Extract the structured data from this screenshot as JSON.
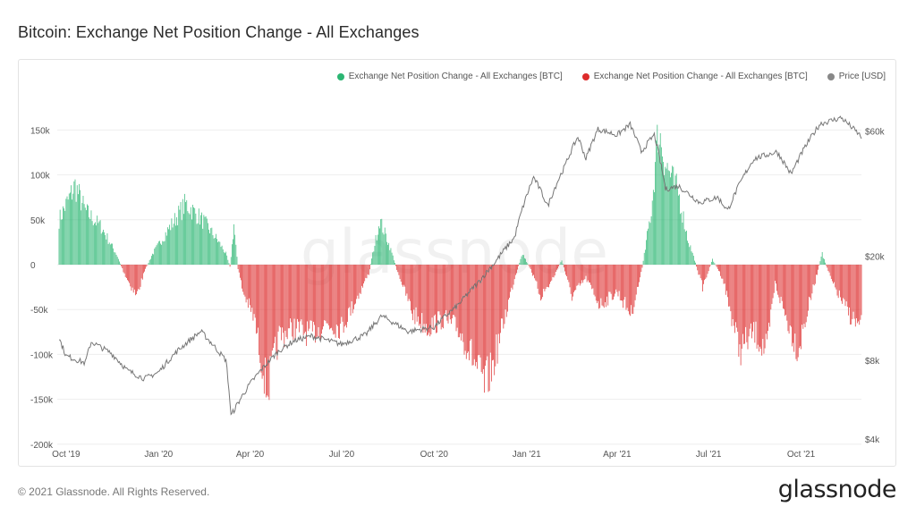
{
  "page": {
    "title": "Bitcoin: Exchange Net Position Change - All Exchanges",
    "copyright": "© 2021 Glassnode. All Rights Reserved.",
    "brand": "glassnode",
    "watermark": "glassnode"
  },
  "colors": {
    "positive": "#2cb673",
    "negative": "#dd2b2b",
    "price": "#777777",
    "grid": "#eeeeee"
  },
  "chart_data": {
    "type": "bar",
    "title": "Bitcoin: Exchange Net Position Change - All Exchanges",
    "legend": [
      {
        "label": "Exchange Net Position Change - All Exchanges [BTC]",
        "color": "#2cb673",
        "icon": "green-dot-icon"
      },
      {
        "label": "Exchange Net Position Change - All Exchanges [BTC]",
        "color": "#dd2b2b",
        "icon": "red-dot-icon"
      },
      {
        "label": "Price [USD]",
        "color": "#888888",
        "icon": "gray-dot-icon"
      }
    ],
    "legend_position": "top-right",
    "x_range": [
      "2019-09-24",
      "2021-11-30"
    ],
    "x_ticks": [
      {
        "date": "2019-10-01",
        "label": "Oct '19"
      },
      {
        "date": "2020-01-01",
        "label": "Jan '20"
      },
      {
        "date": "2020-04-01",
        "label": "Apr '20"
      },
      {
        "date": "2020-07-01",
        "label": "Jul '20"
      },
      {
        "date": "2020-10-01",
        "label": "Oct '20"
      },
      {
        "date": "2021-01-01",
        "label": "Jan '21"
      },
      {
        "date": "2021-04-01",
        "label": "Apr '21"
      },
      {
        "date": "2021-07-01",
        "label": "Jul '21"
      },
      {
        "date": "2021-10-01",
        "label": "Oct '21"
      }
    ],
    "y_left": {
      "range": [
        -200000,
        200000
      ],
      "ticks": [
        150000,
        100000,
        50000,
        0,
        -50000,
        -100000,
        -150000,
        -200000
      ],
      "tick_labels": [
        "150k",
        "100k",
        "50k",
        "0",
        "-50k",
        "-100k",
        "-150k",
        "-200k"
      ]
    },
    "y_right": {
      "scale": "log",
      "range": [
        4000,
        70000
      ],
      "ticks": [
        60000,
        20000,
        8000,
        4000
      ],
      "tick_labels": [
        "$60k",
        "$20k",
        "$8k",
        "$4k"
      ]
    },
    "net_position_anchors": [
      {
        "date": "2019-09-24",
        "value": 50000
      },
      {
        "date": "2019-10-10",
        "value": 88000
      },
      {
        "date": "2019-10-20",
        "value": 60000
      },
      {
        "date": "2019-11-05",
        "value": 42000
      },
      {
        "date": "2019-11-20",
        "value": 12000
      },
      {
        "date": "2019-11-28",
        "value": -10000
      },
      {
        "date": "2019-12-10",
        "value": -35000
      },
      {
        "date": "2019-12-18",
        "value": -8000
      },
      {
        "date": "2019-12-25",
        "value": 10000
      },
      {
        "date": "2020-01-10",
        "value": 38000
      },
      {
        "date": "2020-01-28",
        "value": 68000
      },
      {
        "date": "2020-02-15",
        "value": 48000
      },
      {
        "date": "2020-03-01",
        "value": 25000
      },
      {
        "date": "2020-03-08",
        "value": 12000
      },
      {
        "date": "2020-03-12",
        "value": -2000
      },
      {
        "date": "2020-03-16",
        "value": 45000
      },
      {
        "date": "2020-03-20",
        "value": -5000
      },
      {
        "date": "2020-03-25",
        "value": -30000
      },
      {
        "date": "2020-04-05",
        "value": -60000
      },
      {
        "date": "2020-04-18",
        "value": -140000
      },
      {
        "date": "2020-04-30",
        "value": -80000
      },
      {
        "date": "2020-05-15",
        "value": -70000
      },
      {
        "date": "2020-06-01",
        "value": -78000
      },
      {
        "date": "2020-06-15",
        "value": -65000
      },
      {
        "date": "2020-07-01",
        "value": -70000
      },
      {
        "date": "2020-07-15",
        "value": -40000
      },
      {
        "date": "2020-07-28",
        "value": -10000
      },
      {
        "date": "2020-08-08",
        "value": 50000
      },
      {
        "date": "2020-08-18",
        "value": 20000
      },
      {
        "date": "2020-08-25",
        "value": -5000
      },
      {
        "date": "2020-09-10",
        "value": -55000
      },
      {
        "date": "2020-09-25",
        "value": -70000
      },
      {
        "date": "2020-10-10",
        "value": -60000
      },
      {
        "date": "2020-10-25",
        "value": -72000
      },
      {
        "date": "2020-11-05",
        "value": -95000
      },
      {
        "date": "2020-11-20",
        "value": -135000
      },
      {
        "date": "2020-11-28",
        "value": -115000
      },
      {
        "date": "2020-12-10",
        "value": -60000
      },
      {
        "date": "2020-12-20",
        "value": -15000
      },
      {
        "date": "2020-12-28",
        "value": 12000
      },
      {
        "date": "2021-01-05",
        "value": -5000
      },
      {
        "date": "2021-01-15",
        "value": -35000
      },
      {
        "date": "2021-01-25",
        "value": -20000
      },
      {
        "date": "2021-02-05",
        "value": 5000
      },
      {
        "date": "2021-02-15",
        "value": -35000
      },
      {
        "date": "2021-03-01",
        "value": -15000
      },
      {
        "date": "2021-03-15",
        "value": -45000
      },
      {
        "date": "2021-04-01",
        "value": -30000
      },
      {
        "date": "2021-04-15",
        "value": -55000
      },
      {
        "date": "2021-04-25",
        "value": -10000
      },
      {
        "date": "2021-05-05",
        "value": 60000
      },
      {
        "date": "2021-05-12",
        "value": 150000
      },
      {
        "date": "2021-05-20",
        "value": 110000
      },
      {
        "date": "2021-06-01",
        "value": 80000
      },
      {
        "date": "2021-06-10",
        "value": 30000
      },
      {
        "date": "2021-06-18",
        "value": 2000
      },
      {
        "date": "2021-06-25",
        "value": -25000
      },
      {
        "date": "2021-07-05",
        "value": 6000
      },
      {
        "date": "2021-07-15",
        "value": -15000
      },
      {
        "date": "2021-08-01",
        "value": -95000
      },
      {
        "date": "2021-08-15",
        "value": -75000
      },
      {
        "date": "2021-08-28",
        "value": -98000
      },
      {
        "date": "2021-09-05",
        "value": -20000
      },
      {
        "date": "2021-09-15",
        "value": -55000
      },
      {
        "date": "2021-09-28",
        "value": -95000
      },
      {
        "date": "2021-10-10",
        "value": -40000
      },
      {
        "date": "2021-10-22",
        "value": 12000
      },
      {
        "date": "2021-11-01",
        "value": -20000
      },
      {
        "date": "2021-11-15",
        "value": -50000
      },
      {
        "date": "2021-11-28",
        "value": -70000
      }
    ],
    "price_anchors": [
      {
        "date": "2019-09-24",
        "value": 9700
      },
      {
        "date": "2019-10-01",
        "value": 8300
      },
      {
        "date": "2019-10-20",
        "value": 7800
      },
      {
        "date": "2019-10-26",
        "value": 9400
      },
      {
        "date": "2019-11-15",
        "value": 8500
      },
      {
        "date": "2019-12-01",
        "value": 7300
      },
      {
        "date": "2019-12-18",
        "value": 6800
      },
      {
        "date": "2020-01-01",
        "value": 7200
      },
      {
        "date": "2020-01-20",
        "value": 8700
      },
      {
        "date": "2020-02-12",
        "value": 10300
      },
      {
        "date": "2020-03-01",
        "value": 8600
      },
      {
        "date": "2020-03-08",
        "value": 8000
      },
      {
        "date": "2020-03-13",
        "value": 4900
      },
      {
        "date": "2020-04-01",
        "value": 6500
      },
      {
        "date": "2020-04-30",
        "value": 8700
      },
      {
        "date": "2020-05-15",
        "value": 9500
      },
      {
        "date": "2020-06-01",
        "value": 9900
      },
      {
        "date": "2020-07-01",
        "value": 9200
      },
      {
        "date": "2020-07-25",
        "value": 10000
      },
      {
        "date": "2020-08-10",
        "value": 11800
      },
      {
        "date": "2020-09-05",
        "value": 10300
      },
      {
        "date": "2020-10-01",
        "value": 10700
      },
      {
        "date": "2020-10-25",
        "value": 13000
      },
      {
        "date": "2020-11-15",
        "value": 16000
      },
      {
        "date": "2020-12-01",
        "value": 19000
      },
      {
        "date": "2020-12-20",
        "value": 23500
      },
      {
        "date": "2021-01-08",
        "value": 40000
      },
      {
        "date": "2021-01-22",
        "value": 31000
      },
      {
        "date": "2021-02-08",
        "value": 44000
      },
      {
        "date": "2021-02-21",
        "value": 57000
      },
      {
        "date": "2021-03-01",
        "value": 47000
      },
      {
        "date": "2021-03-13",
        "value": 61000
      },
      {
        "date": "2021-04-01",
        "value": 58000
      },
      {
        "date": "2021-04-14",
        "value": 63500
      },
      {
        "date": "2021-04-25",
        "value": 50000
      },
      {
        "date": "2021-05-08",
        "value": 58000
      },
      {
        "date": "2021-05-19",
        "value": 36000
      },
      {
        "date": "2021-06-01",
        "value": 37000
      },
      {
        "date": "2021-06-22",
        "value": 32000
      },
      {
        "date": "2021-07-10",
        "value": 33500
      },
      {
        "date": "2021-07-20",
        "value": 29800
      },
      {
        "date": "2021-08-15",
        "value": 47000
      },
      {
        "date": "2021-09-07",
        "value": 50000
      },
      {
        "date": "2021-09-21",
        "value": 41000
      },
      {
        "date": "2021-10-20",
        "value": 64000
      },
      {
        "date": "2021-11-10",
        "value": 67500
      },
      {
        "date": "2021-11-30",
        "value": 57000
      }
    ]
  }
}
